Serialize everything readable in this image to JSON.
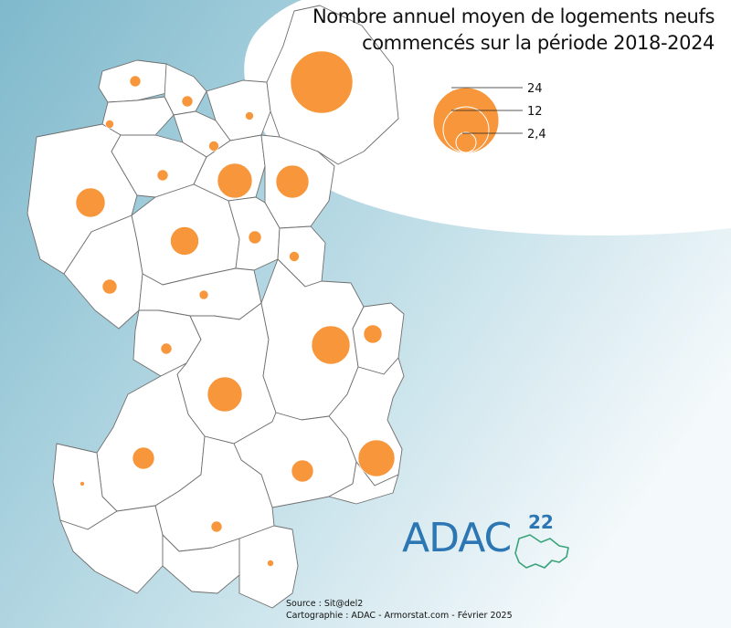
{
  "title": {
    "line1": "Nombre annuel moyen de logements neufs",
    "line2": "commencés sur la période 2018-2024"
  },
  "legend": {
    "labels": [
      "24",
      "12",
      "2,4"
    ],
    "values": [
      24,
      12,
      2.4
    ]
  },
  "source": "Source : Sit@del2",
  "cartography": "Cartographie : ADAC - Armorstat.com - Février 2025",
  "logo": {
    "text": "ADAC",
    "superscript": "22"
  },
  "colors": {
    "symbol": "#f7963a",
    "region_fill": "#ffffff",
    "region_stroke": "#6f6f6f",
    "background_dark": "#8fc3d1",
    "background_light": "#f4f9fb",
    "logo": "#2c77b3",
    "logo_outline": "#3aa37a"
  },
  "communes": [
    {
      "value": 0.5
    },
    {
      "value": 0.5
    },
    {
      "value": 0.2
    },
    {
      "value": 0.2
    },
    {
      "value": 26
    },
    {
      "value": 0.1
    },
    {
      "value": 0.2
    },
    {
      "value": 0.4
    },
    {
      "value": 7
    },
    {
      "value": 7
    },
    {
      "value": 5
    },
    {
      "value": 0.9
    },
    {
      "value": 4
    },
    {
      "value": 1
    },
    {
      "value": 0.8
    },
    {
      "value": 0.2
    },
    {
      "value": 9
    },
    {
      "value": 2
    },
    {
      "value": 8
    },
    {
      "value": 0.6
    },
    {
      "value": 7
    },
    {
      "value": 7
    },
    {
      "value": 1.4
    },
    {
      "value": 0.05
    },
    {
      "value": 0.6
    },
    {
      "value": 0.4
    },
    {
      "value": 2.6
    },
    {
      "value": 0.2
    },
    {
      "value": 3
    },
    {
      "value": 3.4
    },
    {
      "value": 0.2
    }
  ]
}
